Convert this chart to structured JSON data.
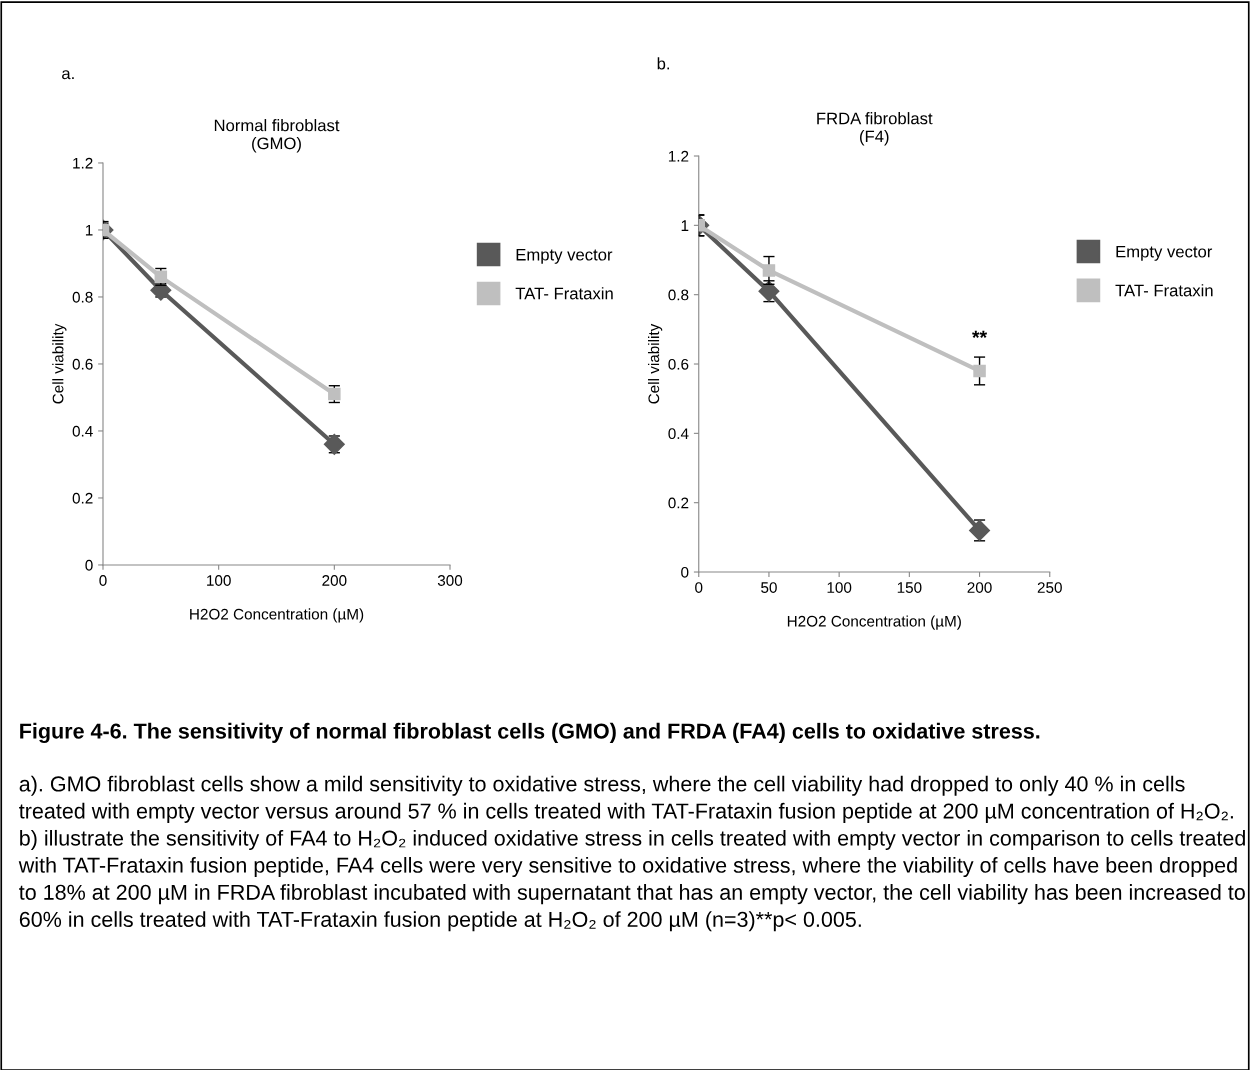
{
  "chart_data": [
    {
      "type": "line",
      "title": "Normal fibroblast\n(GMO)",
      "xlabel": "H2O2 Concentration (µM)",
      "ylabel": "Cell viability",
      "x": [
        0,
        50,
        200
      ],
      "xlim": [
        0,
        300
      ],
      "xticks": [
        0,
        100,
        200,
        300
      ],
      "ylim": [
        0,
        1.2
      ],
      "yticks": [
        0,
        0.2,
        0.4,
        0.6,
        0.8,
        1,
        1.2
      ],
      "grid": false,
      "legend": "right",
      "series": [
        {
          "name": "Empty vector",
          "color": "#595959",
          "marker": "diamond",
          "values": [
            1,
            0.82,
            0.36
          ],
          "errors": [
            0.02,
            0.02,
            0.025
          ]
        },
        {
          "name": "TAT- Frataxin",
          "color": "#bfbfbf",
          "marker": "square",
          "values": [
            1,
            0.86,
            0.51
          ],
          "errors": [
            0.025,
            0.025,
            0.025
          ]
        }
      ],
      "annotations": [
        "a."
      ]
    },
    {
      "type": "line",
      "title": "FRDA fibroblast\n(F4)",
      "xlabel": "H2O2 Concentration (µM)",
      "ylabel": "Cell viability",
      "x": [
        0,
        50,
        200
      ],
      "xlim": [
        0,
        250
      ],
      "xticks": [
        0,
        50,
        100,
        150,
        200,
        250
      ],
      "ylim": [
        0,
        1.2
      ],
      "yticks": [
        0,
        0.2,
        0.4,
        0.6,
        0.8,
        1,
        1.2
      ],
      "grid": false,
      "legend": "right",
      "series": [
        {
          "name": "Empty vector",
          "color": "#595959",
          "marker": "diamond",
          "values": [
            1,
            0.81,
            0.12
          ],
          "errors": [
            0.03,
            0.03,
            0.03
          ]
        },
        {
          "name": "TAT- Frataxin",
          "color": "#bfbfbf",
          "marker": "square",
          "values": [
            1,
            0.87,
            0.58
          ],
          "errors": [
            0.03,
            0.04,
            0.04
          ]
        }
      ],
      "annotations": [
        "b.",
        "**",
        "Figure 4-6. The sensitivity of normal fibroblast cells (GMO) and FRDA (FA4) cells to oxidative stress.",
        "a). GMO fibroblast cells show a mild sensitivity to oxidative stress, where the cell viability had dropped to only 40 % in cells treated with empty vector versus around 57 % in cells treated with TAT-Frataxin fusion peptide at 200 µM concentration of H₂O₂. b) illustrate the sensitivity of FA4 to H₂O₂ induced oxidative stress in cells treated with empty vector in comparison to cells treated with TAT-Frataxin fusion peptide, FA4 cells were very sensitive to oxidative stress, where the viability of cells have been dropped to 18% at 200 µM in FRDA fibroblast incubated with supernatant that has an empty vector, the cell viability has been increased to 60% in cells treated with TAT-Frataxin fusion peptide at H₂O₂ of 200 µM (n=3)**p< 0.005."
      ]
    }
  ]
}
